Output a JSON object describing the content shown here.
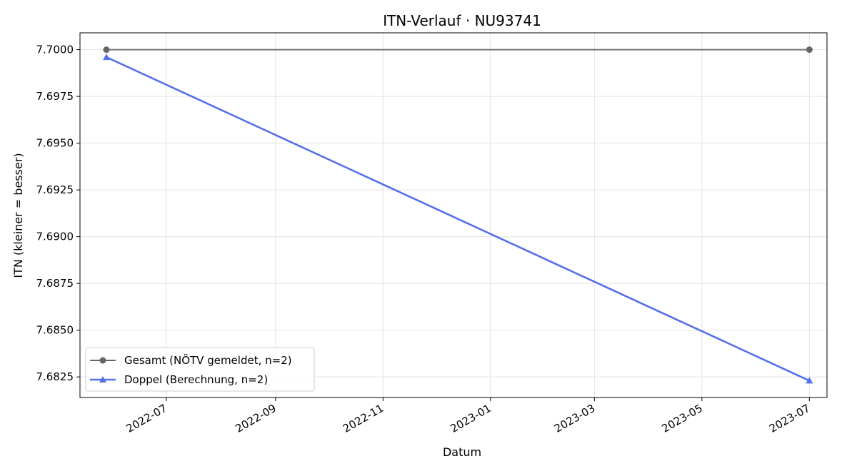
{
  "chart_data": {
    "type": "line",
    "title": "ITN-Verlauf · NU93741",
    "xlabel": "Datum",
    "ylabel": "ITN  (kleiner = besser)",
    "x_tick_labels": [
      "2022-07",
      "2022-09",
      "2022-11",
      "2023-01",
      "2023-03",
      "2023-05",
      "2023-07"
    ],
    "y_tick_labels": [
      "7.6825",
      "7.6850",
      "7.6875",
      "7.6900",
      "7.6925",
      "7.6950",
      "7.6975",
      "7.7000"
    ],
    "ylim": [
      7.6814,
      7.7009
    ],
    "xlim": [
      "2022-05-13",
      "2023-07-11"
    ],
    "grid": true,
    "legend_position": "lower-left",
    "series": [
      {
        "name": "Gesamt (NÖTV gemeldet, n=2)",
        "color": "#666666",
        "marker": "circle",
        "points": [
          {
            "x": "2022-05-28",
            "y": 7.7
          },
          {
            "x": "2023-07-01",
            "y": 7.7
          }
        ]
      },
      {
        "name": "Doppel (Berechnung, n=2)",
        "color": "#5470ec",
        "marker": "triangle",
        "points": [
          {
            "x": "2022-05-28",
            "y": 7.6996
          },
          {
            "x": "2023-07-01",
            "y": 7.6823
          }
        ]
      }
    ]
  }
}
